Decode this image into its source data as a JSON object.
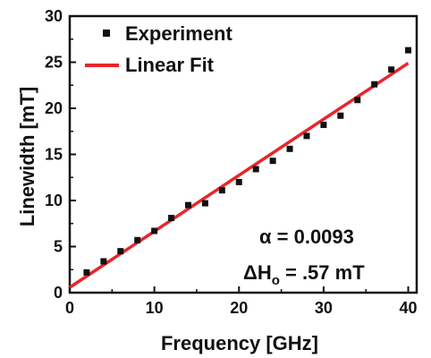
{
  "chart_data": {
    "type": "scatter",
    "xlabel": "Frequency [GHz]",
    "ylabel": "Linewidth [mT]",
    "xlim": [
      0,
      41
    ],
    "ylim": [
      0,
      30
    ],
    "x_ticks": [
      0,
      10,
      20,
      30,
      40
    ],
    "y_ticks": [
      0,
      5,
      10,
      15,
      20,
      25,
      30
    ],
    "grid": false,
    "legend_position": "top-left",
    "series": [
      {
        "name": "Experiment",
        "type": "scatter",
        "marker": "square",
        "color": "#111111",
        "x": [
          2,
          4,
          6,
          8,
          10,
          12,
          14,
          16,
          18,
          20,
          22,
          24,
          26,
          28,
          30,
          32,
          34,
          36,
          38,
          40
        ],
        "y": [
          2.2,
          3.4,
          4.5,
          5.7,
          6.7,
          8.1,
          9.5,
          9.7,
          11.1,
          12.0,
          13.4,
          14.3,
          15.6,
          17.0,
          18.2,
          19.2,
          20.9,
          22.6,
          24.2,
          26.3
        ]
      },
      {
        "name": "Linear Fit",
        "type": "line",
        "color": "#e8262a",
        "x": [
          0,
          40
        ],
        "y": [
          0.57,
          24.9
        ]
      }
    ],
    "annotations": {
      "alpha_symbol": "α",
      "alpha_rest": " = 0.0093",
      "dh_prefix": "ΔH",
      "dh_sub": "o",
      "dh_rest": " = .57 mT"
    }
  }
}
